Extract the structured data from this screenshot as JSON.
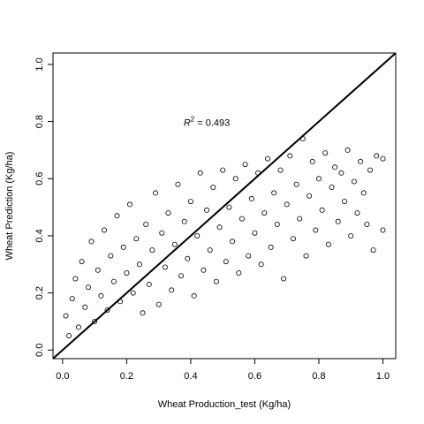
{
  "chart_data": {
    "type": "scatter",
    "xlabel": "Wheat Production_test (Kg/ha)",
    "ylabel": "Wheat Prediction (Kg/ha)",
    "xlim": [
      -0.03,
      1.04
    ],
    "ylim": [
      -0.03,
      1.04
    ],
    "x_ticks": [
      "0.0",
      "0.2",
      "0.4",
      "0.6",
      "0.8",
      "1.0"
    ],
    "y_ticks": [
      "0.0",
      "0.2",
      "0.4",
      "0.6",
      "0.8",
      "1.0"
    ],
    "x_tick_values": [
      0,
      0.2,
      0.4,
      0.6,
      0.8,
      1.0
    ],
    "y_tick_values": [
      0,
      0.2,
      0.4,
      0.6,
      0.8,
      1.0
    ],
    "reference_line": {
      "slope": 1,
      "intercept": 0
    },
    "annotation": {
      "symbol": "R",
      "superscript": "2",
      "text": " = 0.493",
      "x": 0.45,
      "y": 0.785
    },
    "marker": "open-circle",
    "grid": false,
    "colors": {
      "points": "#000000",
      "line": "#000000",
      "background": "#ffffff"
    },
    "series": [
      {
        "points_approx": [
          [
            0.01,
            0.12
          ],
          [
            0.02,
            0.05
          ],
          [
            0.03,
            0.18
          ],
          [
            0.04,
            0.25
          ],
          [
            0.05,
            0.08
          ],
          [
            0.06,
            0.31
          ],
          [
            0.07,
            0.15
          ],
          [
            0.08,
            0.22
          ],
          [
            0.09,
            0.38
          ],
          [
            0.1,
            0.1
          ],
          [
            0.11,
            0.28
          ],
          [
            0.12,
            0.19
          ],
          [
            0.13,
            0.42
          ],
          [
            0.14,
            0.14
          ],
          [
            0.15,
            0.33
          ],
          [
            0.16,
            0.24
          ],
          [
            0.17,
            0.47
          ],
          [
            0.18,
            0.17
          ],
          [
            0.19,
            0.36
          ],
          [
            0.2,
            0.27
          ],
          [
            0.21,
            0.51
          ],
          [
            0.22,
            0.2
          ],
          [
            0.23,
            0.39
          ],
          [
            0.24,
            0.3
          ],
          [
            0.25,
            0.13
          ],
          [
            0.26,
            0.44
          ],
          [
            0.27,
            0.23
          ],
          [
            0.28,
            0.35
          ],
          [
            0.29,
            0.55
          ],
          [
            0.3,
            0.16
          ],
          [
            0.31,
            0.41
          ],
          [
            0.32,
            0.29
          ],
          [
            0.33,
            0.48
          ],
          [
            0.34,
            0.21
          ],
          [
            0.35,
            0.37
          ],
          [
            0.36,
            0.58
          ],
          [
            0.37,
            0.26
          ],
          [
            0.38,
            0.45
          ],
          [
            0.39,
            0.32
          ],
          [
            0.4,
            0.52
          ],
          [
            0.41,
            0.19
          ],
          [
            0.42,
            0.4
          ],
          [
            0.43,
            0.62
          ],
          [
            0.44,
            0.28
          ],
          [
            0.45,
            0.49
          ],
          [
            0.46,
            0.35
          ],
          [
            0.47,
            0.57
          ],
          [
            0.48,
            0.24
          ],
          [
            0.49,
            0.43
          ],
          [
            0.5,
            0.63
          ],
          [
            0.51,
            0.31
          ],
          [
            0.52,
            0.5
          ],
          [
            0.53,
            0.38
          ],
          [
            0.54,
            0.6
          ],
          [
            0.55,
            0.27
          ],
          [
            0.56,
            0.46
          ],
          [
            0.57,
            0.65
          ],
          [
            0.58,
            0.33
          ],
          [
            0.59,
            0.53
          ],
          [
            0.6,
            0.41
          ],
          [
            0.61,
            0.62
          ],
          [
            0.62,
            0.3
          ],
          [
            0.63,
            0.48
          ],
          [
            0.64,
            0.67
          ],
          [
            0.65,
            0.36
          ],
          [
            0.66,
            0.55
          ],
          [
            0.67,
            0.44
          ],
          [
            0.68,
            0.63
          ],
          [
            0.69,
            0.25
          ],
          [
            0.7,
            0.51
          ],
          [
            0.71,
            0.68
          ],
          [
            0.72,
            0.39
          ],
          [
            0.73,
            0.58
          ],
          [
            0.74,
            0.46
          ],
          [
            0.75,
            0.74
          ],
          [
            0.76,
            0.33
          ],
          [
            0.77,
            0.54
          ],
          [
            0.78,
            0.66
          ],
          [
            0.79,
            0.42
          ],
          [
            0.8,
            0.6
          ],
          [
            0.81,
            0.49
          ],
          [
            0.82,
            0.69
          ],
          [
            0.83,
            0.37
          ],
          [
            0.84,
            0.57
          ],
          [
            0.85,
            0.64
          ],
          [
            0.86,
            0.45
          ],
          [
            0.87,
            0.62
          ],
          [
            0.88,
            0.52
          ],
          [
            0.89,
            0.7
          ],
          [
            0.9,
            0.4
          ],
          [
            0.91,
            0.59
          ],
          [
            0.92,
            0.48
          ],
          [
            0.93,
            0.66
          ],
          [
            0.94,
            0.55
          ],
          [
            0.95,
            0.44
          ],
          [
            0.96,
            0.63
          ],
          [
            0.97,
            0.35
          ],
          [
            0.98,
            0.68
          ],
          [
            1.0,
            0.42
          ],
          [
            1.0,
            0.67
          ]
        ]
      }
    ]
  }
}
